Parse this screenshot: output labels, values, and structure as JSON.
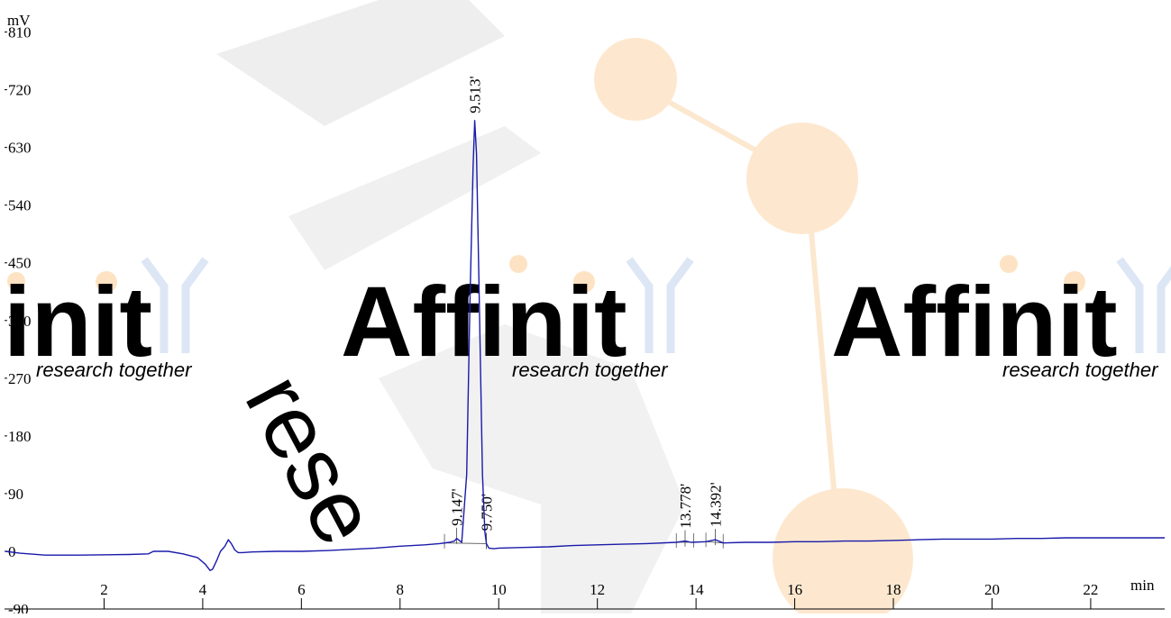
{
  "chart_data": {
    "type": "line",
    "y_unit": "mV",
    "x_unit": "min",
    "yticks": [
      -90,
      0,
      90,
      180,
      270,
      360,
      450,
      540,
      630,
      720,
      810
    ],
    "xticks": [
      2,
      4,
      6,
      8,
      10,
      12,
      14,
      16,
      18,
      20,
      22
    ],
    "xlim": [
      0,
      23.5
    ],
    "ylim": [
      -90,
      860
    ],
    "series": [
      {
        "color": "#1a1aaa",
        "x": [
          0,
          0.3,
          0.8,
          1.5,
          2.5,
          2.9,
          3.0,
          3.3,
          3.6,
          3.9,
          4.05,
          4.15,
          4.2,
          4.28,
          4.36,
          4.45,
          4.52,
          4.58,
          4.65,
          4.72,
          4.8,
          5.0,
          5.5,
          6.0,
          6.5,
          7.0,
          7.5,
          8.0,
          8.5,
          8.8,
          9.0,
          9.1,
          9.147,
          9.25,
          9.35,
          9.42,
          9.48,
          9.513,
          9.55,
          9.6,
          9.67,
          9.72,
          9.75,
          9.8,
          9.9,
          10.0,
          10.5,
          11.0,
          11.5,
          12.0,
          12.5,
          13.0,
          13.6,
          13.778,
          13.9,
          14.2,
          14.392,
          14.55,
          15.0,
          15.5,
          16.0,
          16.5,
          17.0,
          17.5,
          18.0,
          18.5,
          19.0,
          19.5,
          20.0,
          20.5,
          21.0,
          21.5,
          22.0,
          22.5,
          23.0,
          23.5
        ],
        "y": [
          0,
          -3,
          -6,
          -6,
          -5,
          -4,
          0,
          0,
          -4,
          -10,
          -20,
          -30,
          -28,
          -15,
          0,
          8,
          18,
          12,
          2,
          -2,
          -2,
          -1,
          0,
          0,
          1,
          3,
          5,
          8,
          10,
          12,
          14,
          16,
          20,
          14,
          120,
          400,
          600,
          672,
          620,
          420,
          120,
          30,
          12,
          5,
          4,
          5,
          6,
          7,
          9,
          10,
          11,
          12,
          14,
          16,
          14,
          15,
          18,
          13,
          14,
          14,
          15,
          15,
          16,
          16,
          17,
          18,
          19,
          19,
          19,
          20,
          20,
          21,
          21,
          21,
          21,
          21
        ]
      }
    ],
    "peak_labels": [
      "9.513'",
      "9.147'",
      "9.750'",
      "13.778'",
      "14.392'"
    ],
    "peak_times": [
      9.513,
      9.147,
      9.75,
      13.778,
      14.392
    ],
    "watermark": {
      "brand": "Affinit",
      "tagline": "research together",
      "vertical": "rese"
    }
  }
}
